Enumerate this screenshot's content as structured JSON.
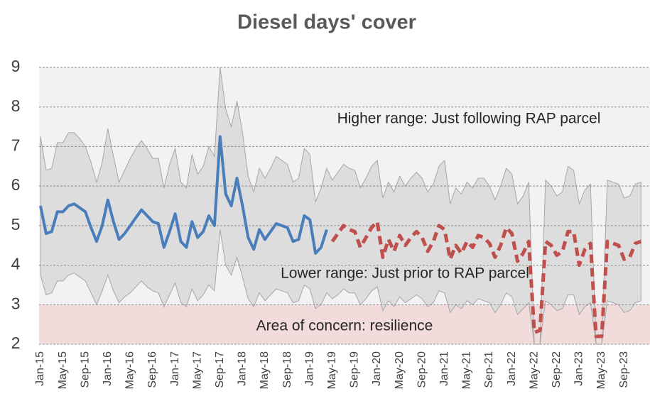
{
  "chart_data": {
    "type": "line",
    "title": "Diesel days' cover",
    "categories": [
      "Jan-15",
      null,
      null,
      null,
      "May-15",
      null,
      null,
      null,
      "Sep-15",
      null,
      null,
      null,
      "Jan-16",
      null,
      null,
      null,
      "May-16",
      null,
      null,
      null,
      "Sep-16",
      null,
      null,
      null,
      "Jan-17",
      null,
      null,
      null,
      "May-17",
      null,
      null,
      null,
      "Sep-17",
      null,
      null,
      null,
      "Jan-18",
      null,
      null,
      null,
      "May-18",
      null,
      null,
      null,
      "Sep-18",
      null,
      null,
      null,
      "Jan-19",
      null,
      null,
      null,
      "May-19",
      null,
      null,
      null,
      "Sep-19",
      null,
      null,
      null,
      "Jan-20",
      null,
      null,
      null,
      "May-20",
      null,
      null,
      null,
      "Sep-20",
      null,
      null,
      null,
      "Jan-21",
      null,
      null,
      null,
      "May-21",
      null,
      null,
      null,
      "Sep-21",
      null,
      null,
      null,
      "Jan-22",
      null,
      null,
      null,
      "May-22",
      null,
      null,
      null,
      "Sep-22",
      null,
      null,
      null,
      "Jan-23",
      null,
      null,
      null,
      "May-23",
      null,
      null,
      null,
      "Sep-23",
      null,
      null,
      null
    ],
    "range": {
      "color": "#d9d9d9",
      "upper": [
        7.25,
        6.4,
        6.45,
        7.1,
        7.1,
        7.35,
        7.35,
        7.2,
        7.0,
        6.6,
        6.1,
        6.6,
        7.45,
        6.75,
        6.1,
        6.4,
        6.7,
        6.95,
        7.15,
        6.95,
        6.7,
        6.7,
        5.95,
        6.55,
        6.95,
        6.1,
        5.95,
        6.8,
        6.3,
        6.5,
        7.0,
        6.75,
        9.0,
        7.95,
        7.5,
        8.15,
        7.35,
        6.25,
        5.85,
        6.45,
        6.2,
        6.45,
        6.75,
        6.65,
        6.55,
        6.1,
        6.2,
        6.95,
        6.8,
        5.6,
        5.95,
        6.45,
        6.15,
        6.35,
        6.55,
        6.45,
        6.4,
        5.95,
        6.2,
        6.5,
        6.65,
        5.7,
        6.1,
        5.85,
        6.25,
        6.0,
        6.2,
        6.35,
        6.2,
        5.85,
        6.05,
        6.5,
        6.65,
        5.55,
        5.95,
        5.8,
        6.1,
        5.95,
        6.2,
        6.2,
        6.0,
        5.65,
        6.0,
        6.45,
        6.3,
        5.55,
        5.75,
        6.1,
        2.0,
        2.0,
        6.15,
        6.0,
        5.75,
        5.85,
        6.5,
        6.4,
        5.55,
        5.9,
        6.05,
        2.0,
        2.0,
        6.15,
        6.1,
        6.05,
        5.7,
        5.75,
        6.05,
        6.1
      ],
      "lower": [
        3.75,
        3.25,
        3.3,
        3.6,
        3.6,
        3.75,
        3.8,
        3.7,
        3.6,
        3.3,
        3.0,
        3.35,
        3.75,
        3.35,
        3.05,
        3.2,
        3.3,
        3.45,
        3.6,
        3.45,
        3.35,
        3.3,
        2.95,
        3.25,
        3.55,
        3.05,
        2.95,
        3.4,
        3.1,
        3.25,
        3.5,
        3.35,
        4.9,
        4.0,
        3.75,
        4.2,
        3.7,
        3.15,
        2.95,
        3.3,
        3.1,
        3.25,
        3.4,
        3.35,
        3.3,
        3.05,
        3.1,
        3.5,
        3.4,
        2.9,
        3.0,
        3.3,
        3.15,
        3.25,
        3.4,
        3.3,
        3.3,
        3.0,
        3.15,
        3.35,
        3.45,
        2.85,
        3.1,
        2.95,
        3.2,
        3.05,
        3.15,
        3.25,
        3.15,
        2.95,
        3.05,
        3.35,
        3.3,
        2.8,
        3.0,
        2.9,
        3.1,
        3.0,
        3.15,
        3.1,
        3.05,
        2.8,
        3.0,
        3.3,
        3.2,
        2.75,
        2.9,
        3.05,
        2.0,
        2.0,
        3.1,
        3.0,
        2.85,
        2.9,
        3.25,
        3.25,
        2.75,
        2.95,
        3.05,
        2.0,
        2.0,
        3.1,
        3.05,
        3.0,
        2.8,
        2.85,
        3.05,
        3.1
      ]
    },
    "series": [
      {
        "color": "#4a7ebb",
        "dashed": false,
        "values": [
          5.5,
          4.8,
          4.85,
          5.35,
          5.35,
          5.5,
          5.55,
          5.45,
          5.35,
          4.95,
          4.6,
          5.0,
          5.65,
          5.1,
          4.65,
          4.8,
          5.0,
          5.2,
          5.4,
          5.25,
          5.1,
          5.05,
          4.45,
          4.85,
          5.3,
          4.6,
          4.45,
          5.1,
          4.7,
          4.85,
          5.25,
          5.0,
          7.25,
          5.8,
          5.5,
          6.2,
          5.5,
          4.7,
          4.4,
          4.9,
          4.65,
          4.85,
          5.05,
          5.0,
          4.95,
          4.6,
          4.65,
          5.25,
          5.15,
          4.3,
          4.45,
          4.9,
          null,
          null,
          null,
          null,
          null,
          null,
          null,
          null,
          null,
          null,
          null,
          null,
          null,
          null,
          null,
          null,
          null,
          null,
          null,
          null,
          null,
          null,
          null,
          null,
          null,
          null,
          null,
          null,
          null,
          null,
          null,
          null,
          null,
          null,
          null,
          null,
          null,
          null,
          null,
          null,
          null,
          null,
          null,
          null,
          null,
          null,
          null,
          null,
          null,
          null,
          null,
          null,
          null,
          null,
          null,
          null
        ]
      },
      {
        "color": "#c0504d",
        "dashed": true,
        "values": [
          null,
          null,
          null,
          null,
          null,
          null,
          null,
          null,
          null,
          null,
          null,
          null,
          null,
          null,
          null,
          null,
          null,
          null,
          null,
          null,
          null,
          null,
          null,
          null,
          null,
          null,
          null,
          null,
          null,
          null,
          null,
          null,
          null,
          null,
          null,
          null,
          null,
          null,
          null,
          null,
          null,
          null,
          null,
          null,
          null,
          null,
          null,
          null,
          null,
          null,
          null,
          null,
          4.6,
          4.8,
          5.0,
          4.9,
          4.85,
          4.45,
          4.7,
          4.95,
          5.1,
          4.2,
          4.65,
          4.35,
          4.75,
          4.5,
          4.7,
          4.85,
          4.7,
          4.35,
          4.6,
          5.0,
          4.9,
          4.15,
          4.5,
          4.3,
          4.6,
          4.45,
          4.75,
          4.7,
          4.55,
          4.2,
          4.5,
          4.95,
          4.8,
          4.1,
          4.3,
          4.6,
          2.3,
          2.35,
          4.6,
          4.5,
          4.25,
          4.35,
          4.85,
          4.85,
          4.0,
          4.4,
          4.55,
          2.2,
          2.2,
          4.6,
          4.55,
          4.5,
          4.15,
          4.2,
          4.55,
          4.6
        ]
      }
    ],
    "bands": [
      {
        "from": 2,
        "to": 3,
        "color": "#f2dcdb"
      }
    ],
    "annotations": [
      "Higher range: Just following RAP parcel",
      "Lower range: Just prior to RAP parcel",
      "Area of concern: resilience"
    ],
    "ylim": [
      2,
      9
    ],
    "yticks": [
      2,
      3,
      4,
      5,
      6,
      7,
      8,
      9
    ],
    "grid": true
  }
}
